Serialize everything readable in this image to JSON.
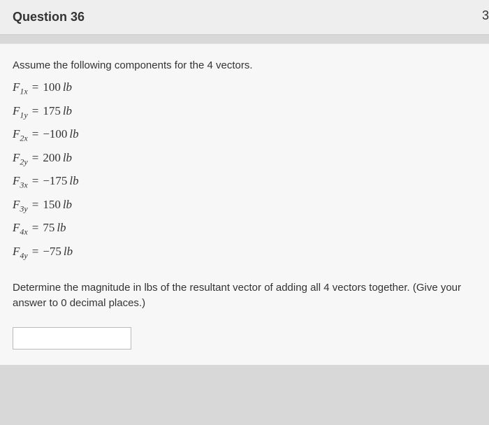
{
  "header": {
    "title": "Question 36",
    "right_fragment": "3"
  },
  "question": {
    "intro": "Assume the following components for the 4 vectors.",
    "equations": [
      {
        "var": "F",
        "sub": "1x",
        "val": "100",
        "unit": "lb"
      },
      {
        "var": "F",
        "sub": "1y",
        "val": "175",
        "unit": "lb"
      },
      {
        "var": "F",
        "sub": "2x",
        "val": "−100",
        "unit": "lb"
      },
      {
        "var": "F",
        "sub": "2y",
        "val": "200",
        "unit": "lb"
      },
      {
        "var": "F",
        "sub": "3x",
        "val": "−175",
        "unit": "lb"
      },
      {
        "var": "F",
        "sub": "3y",
        "val": "150",
        "unit": "lb"
      },
      {
        "var": "F",
        "sub": "4x",
        "val": "75",
        "unit": "lb"
      },
      {
        "var": "F",
        "sub": "4y",
        "val": "−75",
        "unit": "lb"
      }
    ],
    "prompt": "Determine the magnitude in lbs of the resultant vector of adding all 4 vectors together. (Give your answer to 0 decimal places.)",
    "answer_value": ""
  }
}
